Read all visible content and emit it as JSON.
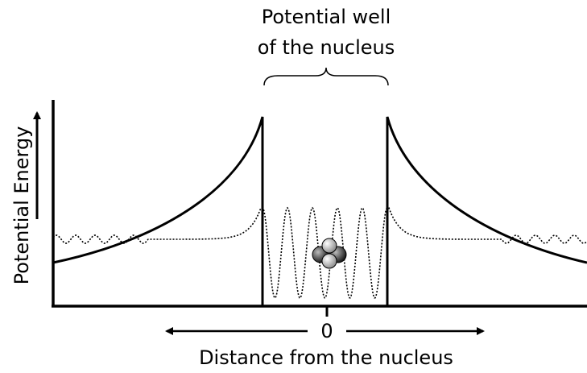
{
  "title_lines": [
    "Potential well",
    "of the nucleus"
  ],
  "y_axis_label": "Potential Energy",
  "origin_label": "0",
  "x_axis_label": "Distance from the nucleus"
}
